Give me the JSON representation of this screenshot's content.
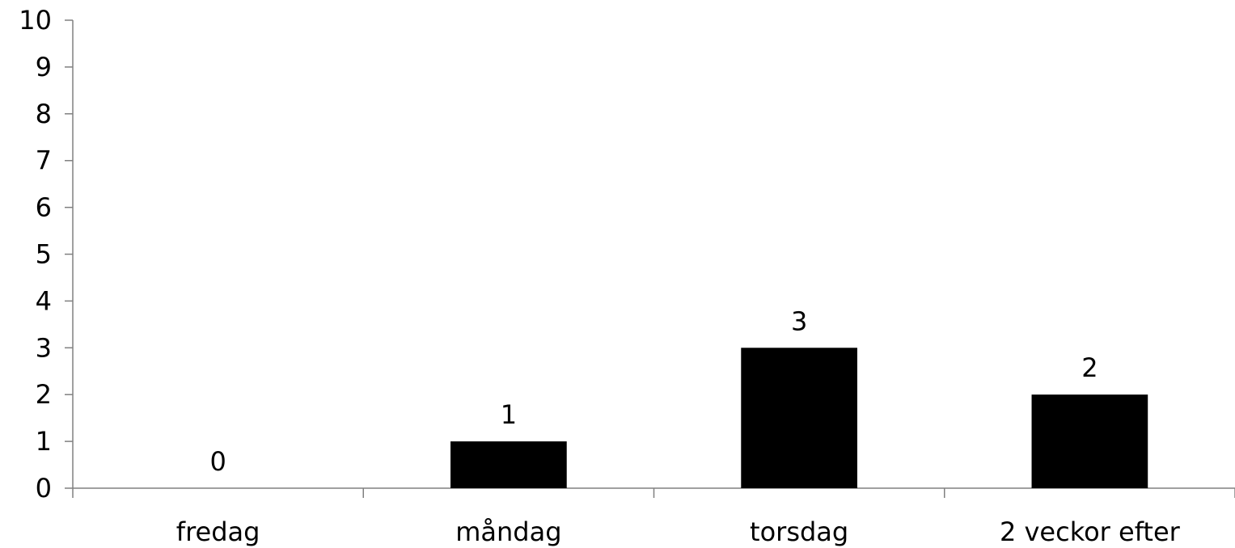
{
  "chart_data": {
    "type": "bar",
    "title": "",
    "xlabel": "",
    "ylabel": "",
    "categories": [
      "fredag",
      "måndag",
      "torsdag",
      "2 veckor efter"
    ],
    "values": [
      0,
      1,
      3,
      2
    ],
    "data_labels": [
      "0",
      "1",
      "3",
      "2"
    ],
    "y_ticks": [
      "0",
      "1",
      "2",
      "3",
      "4",
      "5",
      "6",
      "7",
      "8",
      "9",
      "10"
    ],
    "ylim": [
      0,
      10
    ],
    "grid": false,
    "legend": "none",
    "colors": {
      "bar": "#000000",
      "axis": "#808080",
      "text": "#000000"
    }
  }
}
